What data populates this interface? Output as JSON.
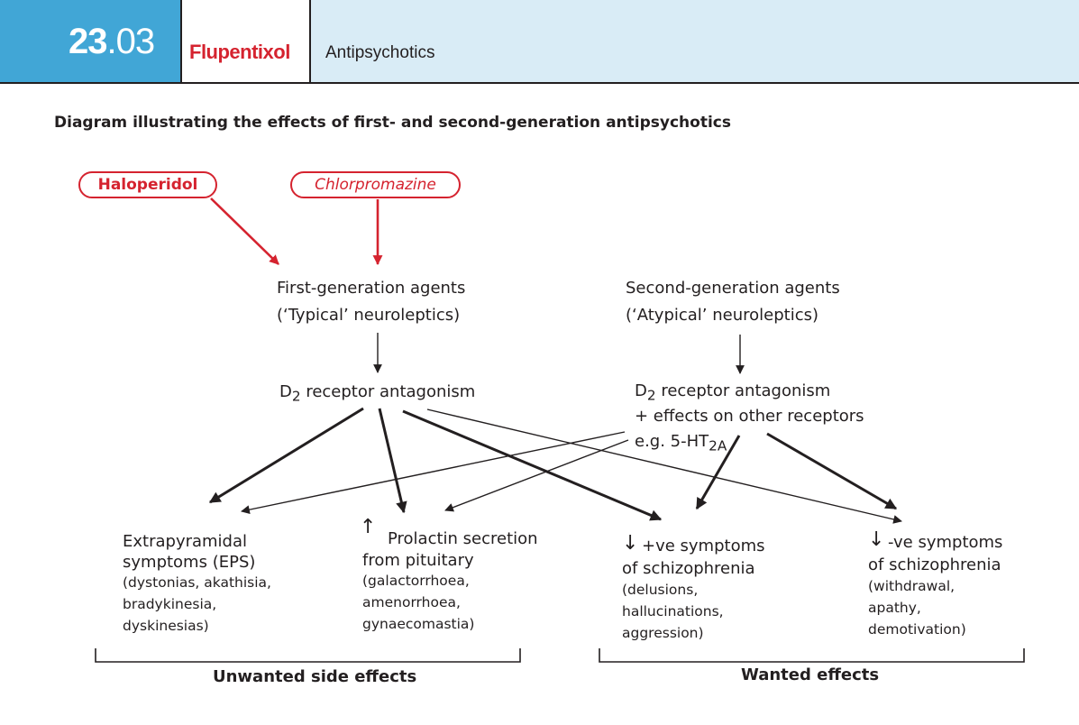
{
  "header": {
    "number_major": "23",
    "number_minor": ".03",
    "drug": "Flupentixol",
    "category": "Antipsychotics"
  },
  "title": "Diagram illustrating the effects of first- and second-generation antipsychotics",
  "drugs": {
    "haloperidol": "Haloperidol",
    "chlorpromazine": "Chlorpromazine"
  },
  "first_gen": {
    "line1": "First-generation agents",
    "line2": "(‘Typical’ neuroleptics)",
    "mech_prefix": "D",
    "mech_sub": "2",
    "mech_rest": " receptor antagonism"
  },
  "second_gen": {
    "line1": "Second-generation agents",
    "line2": "(‘Atypical’ neuroleptics)",
    "mech_prefix": "D",
    "mech_sub": "2",
    "mech_rest": " receptor antagonism",
    "mech_line2": "+ effects on other receptors",
    "mech_line3_prefix": "e.g. 5-HT",
    "mech_line3_sub": "2A"
  },
  "effects": {
    "eps": {
      "line1": "Extrapyramidal",
      "line2": "symptoms (EPS)",
      "details": [
        "(dystonias, akathisia,",
        "bradykinesia,",
        "dyskinesias)"
      ]
    },
    "prolactin": {
      "arrow": "↑",
      "line1": "Prolactin secretion",
      "line2": "from pituitary",
      "details": [
        "(galactorrhoea,",
        "amenorrhoea,",
        "gynaecomastia)"
      ]
    },
    "positive": {
      "arrow": "↓",
      "line1": " +ve  symptoms",
      "line2": "of schizophrenia",
      "details": [
        "(delusions,",
        "hallucinations,",
        "aggression)"
      ]
    },
    "negative": {
      "arrow": "↓",
      "line1": " -ve symptoms",
      "line2": "of schizophrenia",
      "details": [
        "(withdrawal,",
        "apathy,",
        "demotivation)"
      ]
    }
  },
  "groups": {
    "unwanted": "Unwanted side effects",
    "wanted": "Wanted effects"
  },
  "colors": {
    "header_blue": "#41a6d6",
    "header_light": "#d9ecf6",
    "accent_red": "#d5232f",
    "text": "#231f20"
  }
}
